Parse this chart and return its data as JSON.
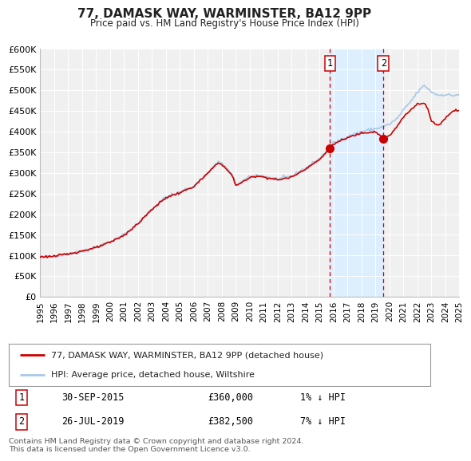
{
  "title": "77, DAMASK WAY, WARMINSTER, BA12 9PP",
  "subtitle": "Price paid vs. HM Land Registry's House Price Index (HPI)",
  "hpi_color": "#a8c8e8",
  "price_color": "#cc0000",
  "marker_color": "#cc0000",
  "vline_color": "#cc0000",
  "shade_color": "#ddeeff",
  "point1_x": 2015.75,
  "point1_y": 360000,
  "point2_x": 2019.57,
  "point2_y": 382500,
  "legend_line1": "77, DAMASK WAY, WARMINSTER, BA12 9PP (detached house)",
  "legend_line2": "HPI: Average price, detached house, Wiltshire",
  "xlim": [
    1995,
    2025
  ],
  "ylim": [
    0,
    600000
  ],
  "ytick_values": [
    0,
    50000,
    100000,
    150000,
    200000,
    250000,
    300000,
    350000,
    400000,
    450000,
    500000,
    550000,
    600000
  ],
  "ylabel_ticks": [
    "£0",
    "£50K",
    "£100K",
    "£150K",
    "£200K",
    "£250K",
    "£300K",
    "£350K",
    "£400K",
    "£450K",
    "£500K",
    "£550K",
    "£600K"
  ],
  "background_color": "#ffffff",
  "plot_bg_color": "#f0f0f0",
  "footer": "Contains HM Land Registry data © Crown copyright and database right 2024.\nThis data is licensed under the Open Government Licence v3.0."
}
